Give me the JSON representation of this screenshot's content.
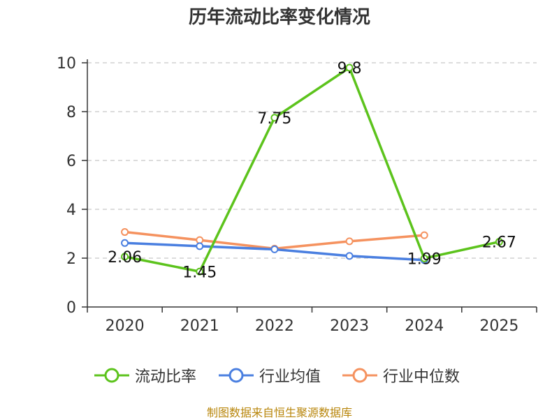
{
  "chart_data": {
    "type": "line",
    "title": "历年流动比率变化情况",
    "categories": [
      "2020",
      "2021",
      "2022",
      "2023",
      "2024",
      "2025"
    ],
    "ylim": [
      0,
      10
    ],
    "yticks": [
      0,
      2,
      4,
      6,
      8,
      10
    ],
    "grid": true,
    "legend_position": "bottom",
    "series": [
      {
        "name": "流动比率",
        "color": "#5cc31c",
        "values": [
          2.06,
          1.45,
          7.75,
          9.8,
          1.99,
          2.67
        ],
        "labels": [
          "2.06",
          "1.45",
          "7.75",
          "9.8",
          "1.99",
          "2.67"
        ]
      },
      {
        "name": "行业均值",
        "color": "#4a7fe0",
        "values": [
          2.62,
          2.49,
          2.36,
          2.09,
          1.92,
          null
        ]
      },
      {
        "name": "行业中位数",
        "color": "#f5925f",
        "values": [
          3.07,
          2.74,
          2.39,
          2.69,
          2.94,
          null
        ]
      }
    ]
  },
  "source_note": "制图数据来自恒生聚源数据库"
}
